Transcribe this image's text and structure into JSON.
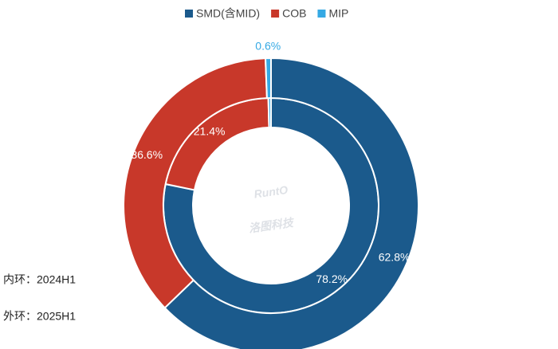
{
  "chart_data": {
    "type": "pie",
    "categories": [
      "SMD(含MID)",
      "COB",
      "MIP"
    ],
    "colors": [
      "#1b5a8c",
      "#c8382a",
      "#35a9e4"
    ],
    "rings": [
      {
        "label": "内环：2024H1",
        "values": [
          78.2,
          21.4,
          0.4
        ],
        "value_labels": [
          "78.2%",
          "21.4%",
          null
        ]
      },
      {
        "label": "外环：2025H1",
        "values": [
          62.8,
          36.6,
          0.6
        ],
        "value_labels": [
          "62.8%",
          "36.6%",
          "0.6%"
        ]
      }
    ],
    "watermark": [
      "RuntO",
      "洛图科技"
    ]
  }
}
